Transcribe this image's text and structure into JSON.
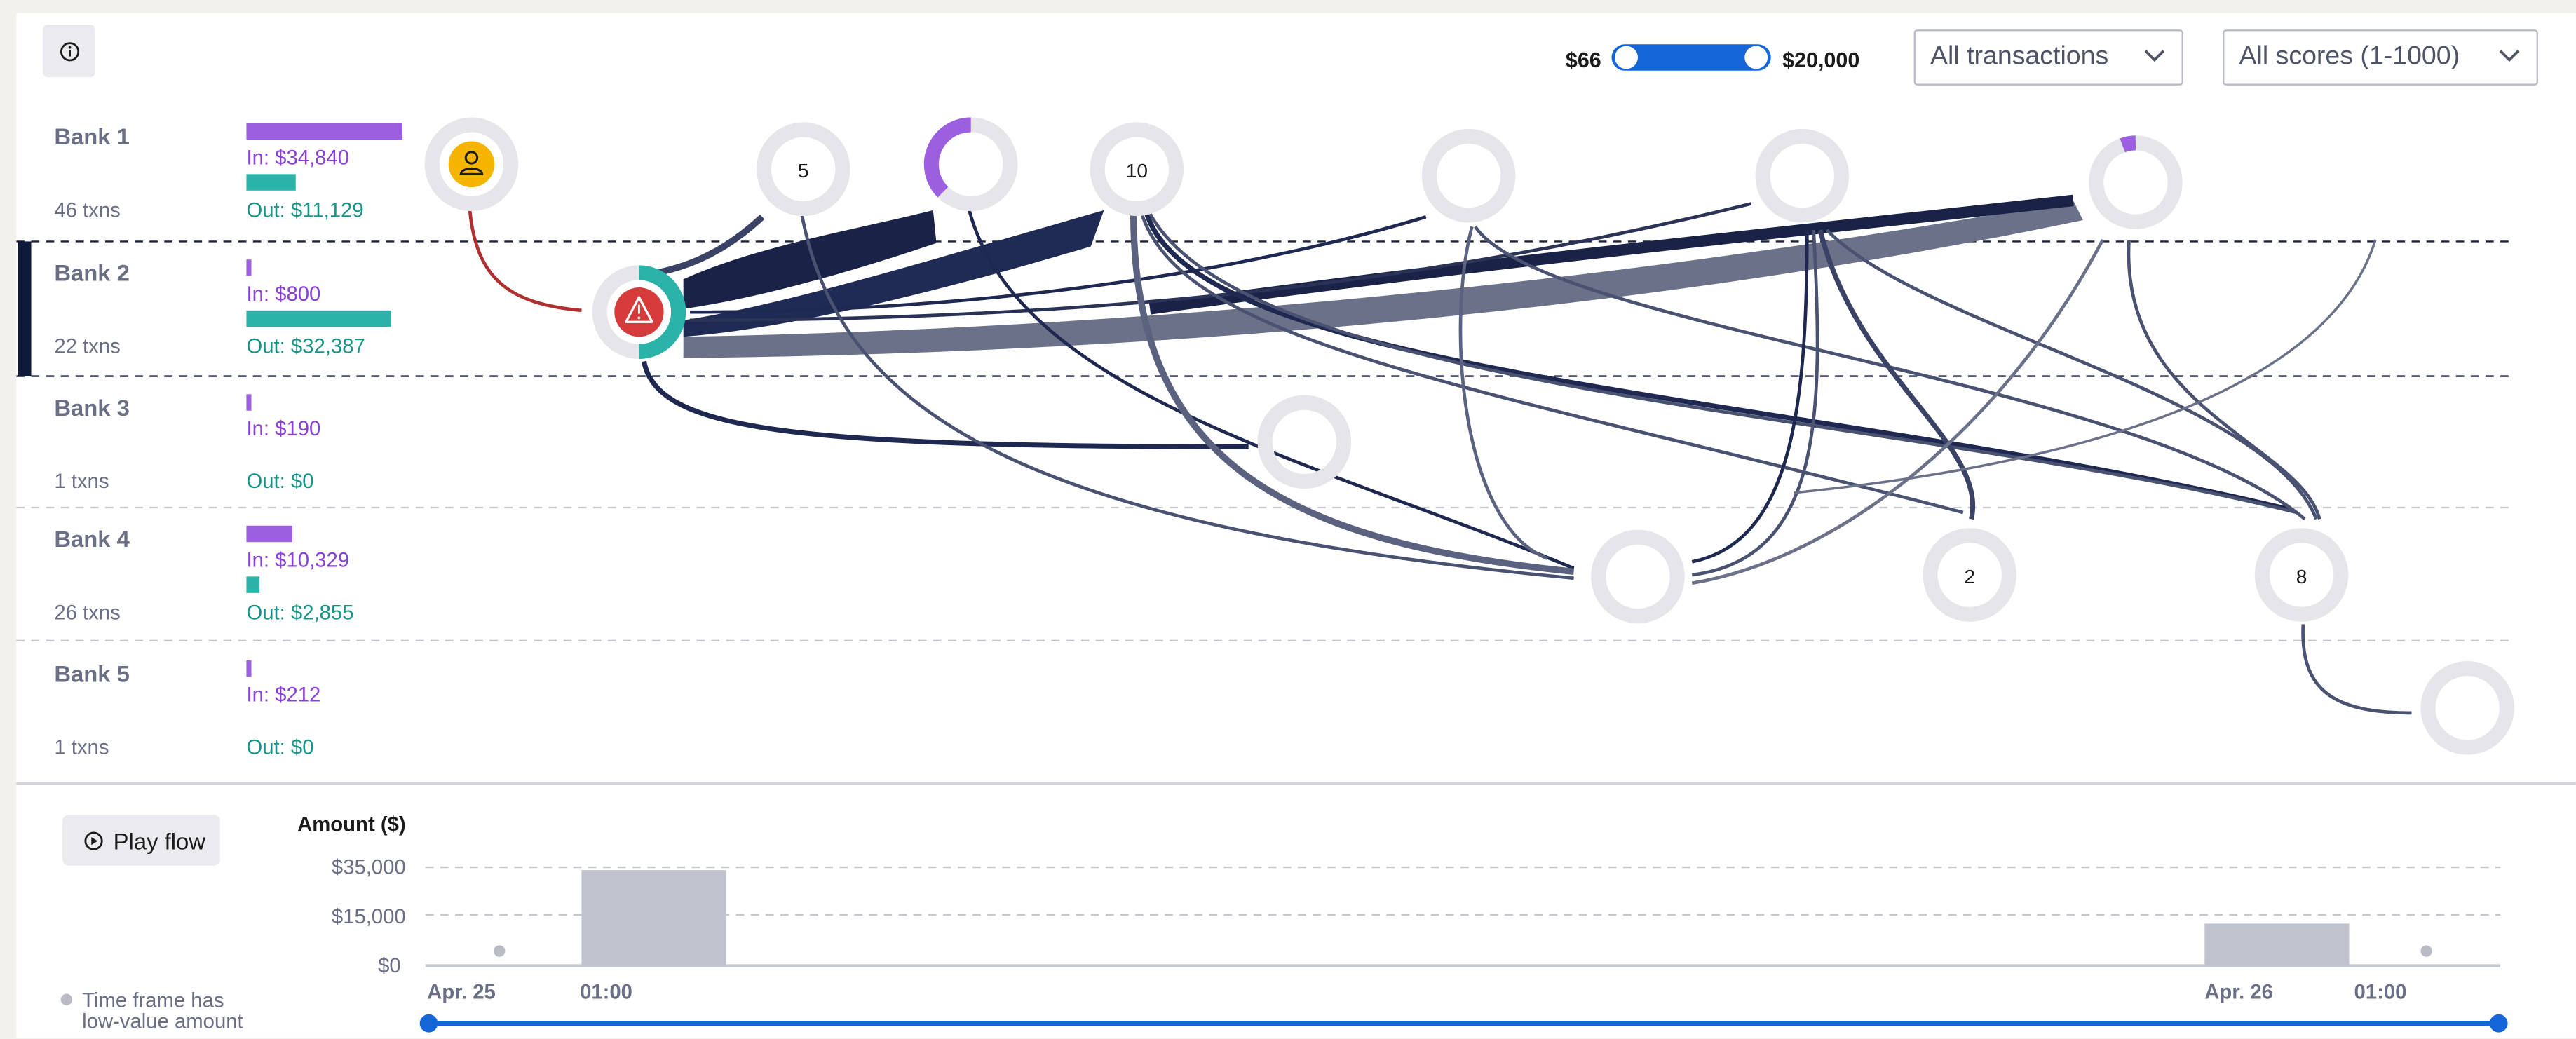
{
  "filters": {
    "amount_min": "$66",
    "amount_max": "$20,000",
    "transactions": "All transactions",
    "scores": "All scores (1-1000)"
  },
  "banks": [
    {
      "name": "Bank 1",
      "in": "In: $34,840",
      "out": "Out: $11,129",
      "txns": "46 txns",
      "in_value": 34840,
      "out_value": 11129
    },
    {
      "name": "Bank 2",
      "in": "In: $800",
      "out": "Out: $32,387",
      "txns": "22 txns",
      "in_value": 800,
      "out_value": 32387
    },
    {
      "name": "Bank 3",
      "in": "In: $190",
      "out": "Out: $0",
      "txns": "1 txns",
      "in_value": 190,
      "out_value": 0
    },
    {
      "name": "Bank 4",
      "in": "In: $10,329",
      "out": "Out: $2,855",
      "txns": "26 txns",
      "in_value": 10329,
      "out_value": 2855
    },
    {
      "name": "Bank 5",
      "in": "In: $212",
      "out": "Out: $0",
      "txns": "1 txns",
      "in_value": 212,
      "out_value": 0
    }
  ],
  "node_counts": {
    "n5": "5",
    "n10": "10",
    "n2": "2",
    "n8": "8"
  },
  "icons": {
    "info": "info-icon",
    "user": "user-icon",
    "alert": "warning-triangle-icon",
    "play": "play-icon",
    "chevron": "chevron-down-icon"
  },
  "colors": {
    "in": "#9b5fe0",
    "out": "#2ab3a8",
    "accent": "#1466d8",
    "flow": "#16214a",
    "alert": "#d63b3b",
    "user": "#f4b400"
  },
  "timeline": {
    "play_label": "Play flow",
    "legend": "Time frame has low-value amount"
  },
  "chart_data": {
    "type": "bar",
    "ylabel": "Amount ($)",
    "ytick_labels": [
      "$35,000",
      "$15,000",
      "$0"
    ],
    "ylim": [
      0,
      35000
    ],
    "yticks": [
      35000,
      15000,
      0
    ],
    "xtick_labels": [
      "Apr. 25",
      "01:00",
      "Apr. 26",
      "01:00"
    ],
    "bars": [
      {
        "label": "Apr. 25 01:00",
        "value": 34000
      },
      {
        "label": "Apr. 26 00:00",
        "value": 15000
      }
    ],
    "low_value_points": [
      "Apr. 25 00:00",
      "Apr. 26 01:00"
    ],
    "grid": true
  }
}
